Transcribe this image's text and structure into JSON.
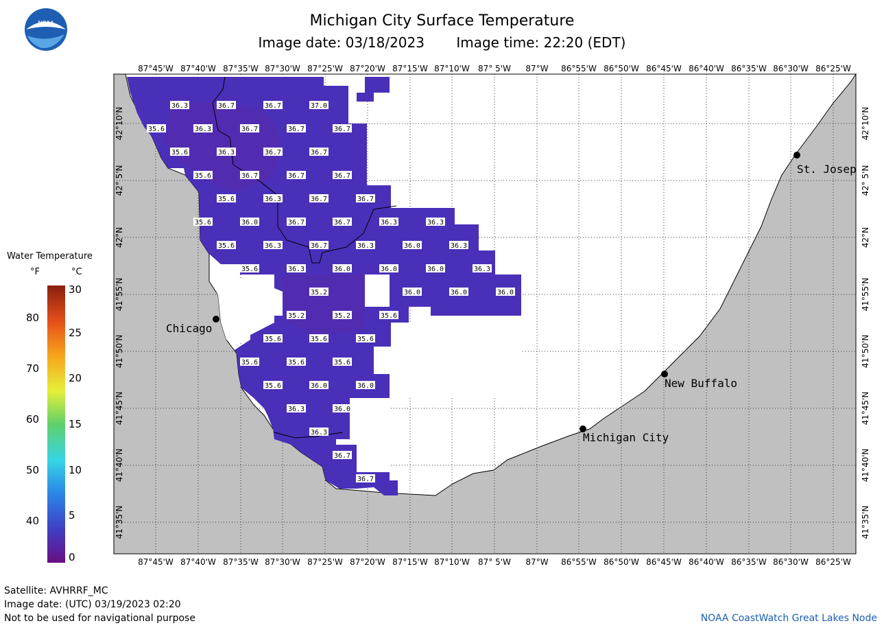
{
  "header": {
    "title": "Michigan City Surface Temperature",
    "image_date": "Image date: 03/18/2023",
    "image_time": "Image time: 22:20 (EDT)"
  },
  "logo": {
    "text": "NOAA",
    "colors": [
      "#1e5fb4",
      "#ffffff"
    ]
  },
  "legend": {
    "title": "Water Temperature",
    "unit_f": "°F",
    "unit_c": "°C",
    "f_ticks": [
      "80",
      "70",
      "60",
      "50",
      "40"
    ],
    "c_ticks": [
      "30",
      "25",
      "20",
      "15",
      "10",
      "5",
      "0"
    ],
    "scale_colors": [
      "#6a0d83",
      "#3f3fc4",
      "#2b86e6",
      "#37d4e6",
      "#5fd06a",
      "#e6ef3a",
      "#f7a21b",
      "#e4501a",
      "#8a1f0f"
    ]
  },
  "map": {
    "lon_labels": [
      "87°45'W",
      "87°40'W",
      "87°35'W",
      "87°30'W",
      "87°25'W",
      "87°20'W",
      "87°15'W",
      "87°10'W",
      "87° 5'W",
      "87°W",
      "86°55'W",
      "86°50'W",
      "86°45'W",
      "86°40'W",
      "86°35'W",
      "86°30'W",
      "86°25'W"
    ],
    "lat_labels": [
      "42°10'N",
      "42° 5'N",
      "42°N",
      "41°55'N",
      "41°50'N",
      "41°45'N",
      "41°40'N",
      "41°35'N"
    ],
    "land_color": "#c0c0c0",
    "water_color": "#4a2fb8",
    "cities": [
      {
        "name": "Chicago"
      },
      {
        "name": "St. Josep"
      },
      {
        "name": "New Buffalo"
      },
      {
        "name": "Michigan City"
      }
    ],
    "temperature_labels": [
      "36.3",
      "36.7",
      "36.7",
      "37.0",
      "35.6",
      "36.3",
      "36.7",
      "36.7",
      "36.7",
      "35.6",
      "36.3",
      "36.7",
      "36.7",
      "35.6",
      "36.7",
      "36.7",
      "36.7",
      "35.6",
      "36.3",
      "36.7",
      "36.7",
      "35.6",
      "36.0",
      "36.7",
      "36.7",
      "36.3",
      "36.3",
      "35.6",
      "36.3",
      "36.7",
      "36.3",
      "36.0",
      "36.3",
      "35.6",
      "36.3",
      "36.0",
      "36.0",
      "36.0",
      "36.3",
      "35.2",
      "36.0",
      "36.0",
      "36.0",
      "35.2",
      "35.2",
      "35.6",
      "35.6",
      "35.6",
      "35.6",
      "35.6",
      "35.6",
      "35.6",
      "35.6",
      "36.0",
      "36.0",
      "36.3",
      "36.0",
      "36.3",
      "36.7",
      "36.7"
    ]
  },
  "footer": {
    "satellite": "Satellite: AVHRRF_MC",
    "utc_date": "Image date: (UTC) 03/19/2023  02:20",
    "disclaimer": "Not to be used for navigational purpose",
    "credit": "NOAA CoastWatch Great Lakes Node"
  }
}
